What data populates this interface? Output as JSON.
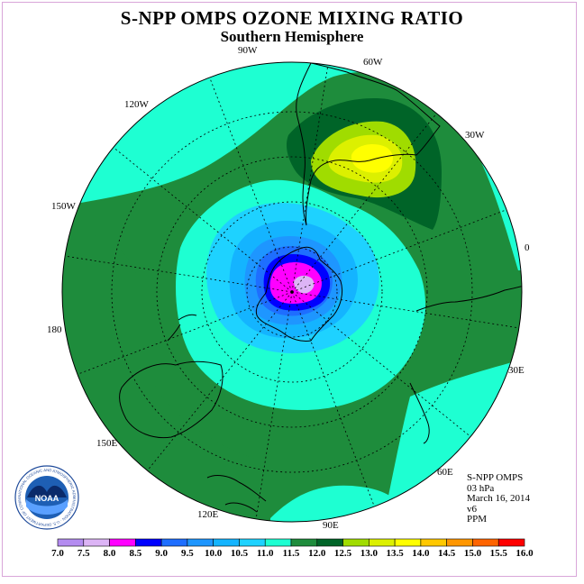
{
  "title": "S-NPP OMPS OZONE MIXING RATIO",
  "subtitle": "Southern Hemisphere",
  "longitude_labels": [
    {
      "id": "90W",
      "text": "90W"
    },
    {
      "id": "60W",
      "text": "60W"
    },
    {
      "id": "120W",
      "text": "120W"
    },
    {
      "id": "30W",
      "text": "30W"
    },
    {
      "id": "150W",
      "text": "150W"
    },
    {
      "id": "0",
      "text": "0"
    },
    {
      "id": "180",
      "text": "180"
    },
    {
      "id": "30E",
      "text": "30E"
    },
    {
      "id": "150E",
      "text": "150E"
    },
    {
      "id": "60E",
      "text": "60E"
    },
    {
      "id": "120E",
      "text": "120E"
    },
    {
      "id": "90E",
      "text": "90E"
    }
  ],
  "info": {
    "line1": "S-NPP OMPS",
    "line2": "03 hPa",
    "line3": "March 16, 2014",
    "line4": "v6",
    "line5": "PPM"
  },
  "colorbar": {
    "labels": [
      "7.0",
      "7.5",
      "8.0",
      "8.5",
      "9.0",
      "9.5",
      "10.0",
      "10.5",
      "11.0",
      "11.5",
      "12.0",
      "12.5",
      "13.0",
      "13.5",
      "14.0",
      "14.5",
      "15.0",
      "15.5",
      "16.0"
    ],
    "colors": [
      "#b48cf0",
      "#dcb4f5",
      "#ff00ff",
      "#0000ff",
      "#1e6eff",
      "#1e96ff",
      "#14b4ff",
      "#1ed2ff",
      "#1effd2",
      "#1e8c3c",
      "#006428",
      "#a0dc00",
      "#dcf000",
      "#ffff00",
      "#ffc800",
      "#ff9600",
      "#ff6400",
      "#ff0000",
      "#8b5a3c"
    ]
  },
  "logo": {
    "text": "NOAA",
    "ring_text": "NATIONAL OCEANIC AND ATMOSPHERIC ADMINISTRATION · U.S. DEPARTMENT OF COMMERCE"
  },
  "colors": {
    "green": "#1e8c3c",
    "dark_green": "#006428",
    "aqua": "#1effd2",
    "cyan": "#1ed2ff",
    "frame": "#d9a6d9"
  }
}
